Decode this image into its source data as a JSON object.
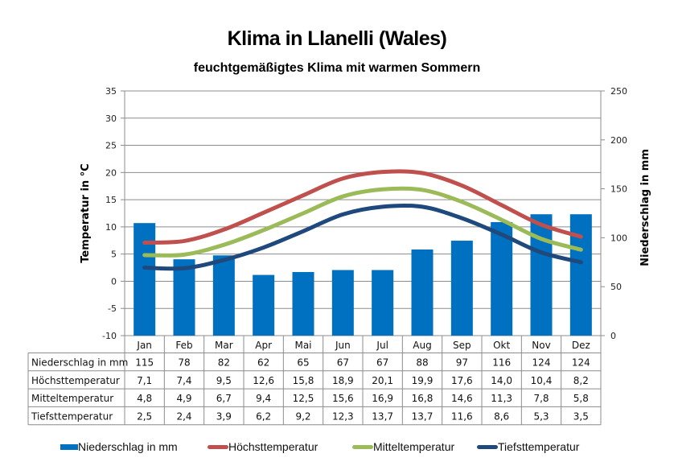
{
  "chart_data": {
    "type": "bar",
    "title": "Klima in Llanelli (Wales)",
    "subtitle": "feuchtgemäßigtes Klima mit warmen Sommern",
    "categories": [
      "Jan",
      "Feb",
      "Mar",
      "Apr",
      "Mai",
      "Jun",
      "Jul",
      "Aug",
      "Sep",
      "Okt",
      "Nov",
      "Dez"
    ],
    "y_left": {
      "label": "Temperatur  in  °C",
      "range": [
        -10,
        35
      ],
      "ticks": [
        "35",
        "30",
        "25",
        "20",
        "15",
        "10",
        "5",
        "0",
        "-5",
        "-10"
      ],
      "tick_values": [
        35,
        30,
        25,
        20,
        15,
        10,
        5,
        0,
        -5,
        -10
      ]
    },
    "y_right": {
      "label": "Niederschlag  in  mm",
      "range": [
        0,
        250
      ],
      "ticks": [
        "250",
        "200",
        "150",
        "100",
        "50",
        "0"
      ],
      "tick_values": [
        250,
        200,
        150,
        100,
        50,
        0
      ]
    },
    "grid": true,
    "legend_position": "bottom",
    "series": [
      {
        "name": "Niederschlag in mm",
        "type": "bar",
        "axis": "right",
        "color": "#0070C0",
        "values": [
          115,
          78,
          82,
          62,
          65,
          67,
          67,
          88,
          97,
          116,
          124,
          124
        ],
        "labels": [
          "115",
          "78",
          "82",
          "62",
          "65",
          "67",
          "67",
          "88",
          "97",
          "116",
          "124",
          "124"
        ]
      },
      {
        "name": "Höchsttemperatur",
        "type": "line",
        "axis": "left",
        "color": "#C0504D",
        "values": [
          7.1,
          7.4,
          9.5,
          12.6,
          15.8,
          18.9,
          20.1,
          19.9,
          17.6,
          14.0,
          10.4,
          8.2
        ],
        "labels": [
          "7,1",
          "7,4",
          "9,5",
          "12,6",
          "15,8",
          "18,9",
          "20,1",
          "19,9",
          "17,6",
          "14,0",
          "10,4",
          "8,2"
        ]
      },
      {
        "name": "Mitteltemperatur",
        "type": "line",
        "axis": "left",
        "color": "#9BBB59",
        "values": [
          4.8,
          4.9,
          6.7,
          9.4,
          12.5,
          15.6,
          16.9,
          16.8,
          14.6,
          11.3,
          7.8,
          5.8
        ],
        "labels": [
          "4,8",
          "4,9",
          "6,7",
          "9,4",
          "12,5",
          "15,6",
          "16,9",
          "16,8",
          "14,6",
          "11,3",
          "7,8",
          "5,8"
        ]
      },
      {
        "name": "Tiefsttemperatur",
        "type": "line",
        "axis": "left",
        "color": "#1F497D",
        "values": [
          2.5,
          2.4,
          3.9,
          6.2,
          9.2,
          12.3,
          13.7,
          13.7,
          11.6,
          8.6,
          5.3,
          3.5
        ],
        "labels": [
          "2,5",
          "2,4",
          "3,9",
          "6,2",
          "9,2",
          "12,3",
          "13,7",
          "13,7",
          "11,6",
          "8,6",
          "5,3",
          "3,5"
        ]
      }
    ]
  }
}
